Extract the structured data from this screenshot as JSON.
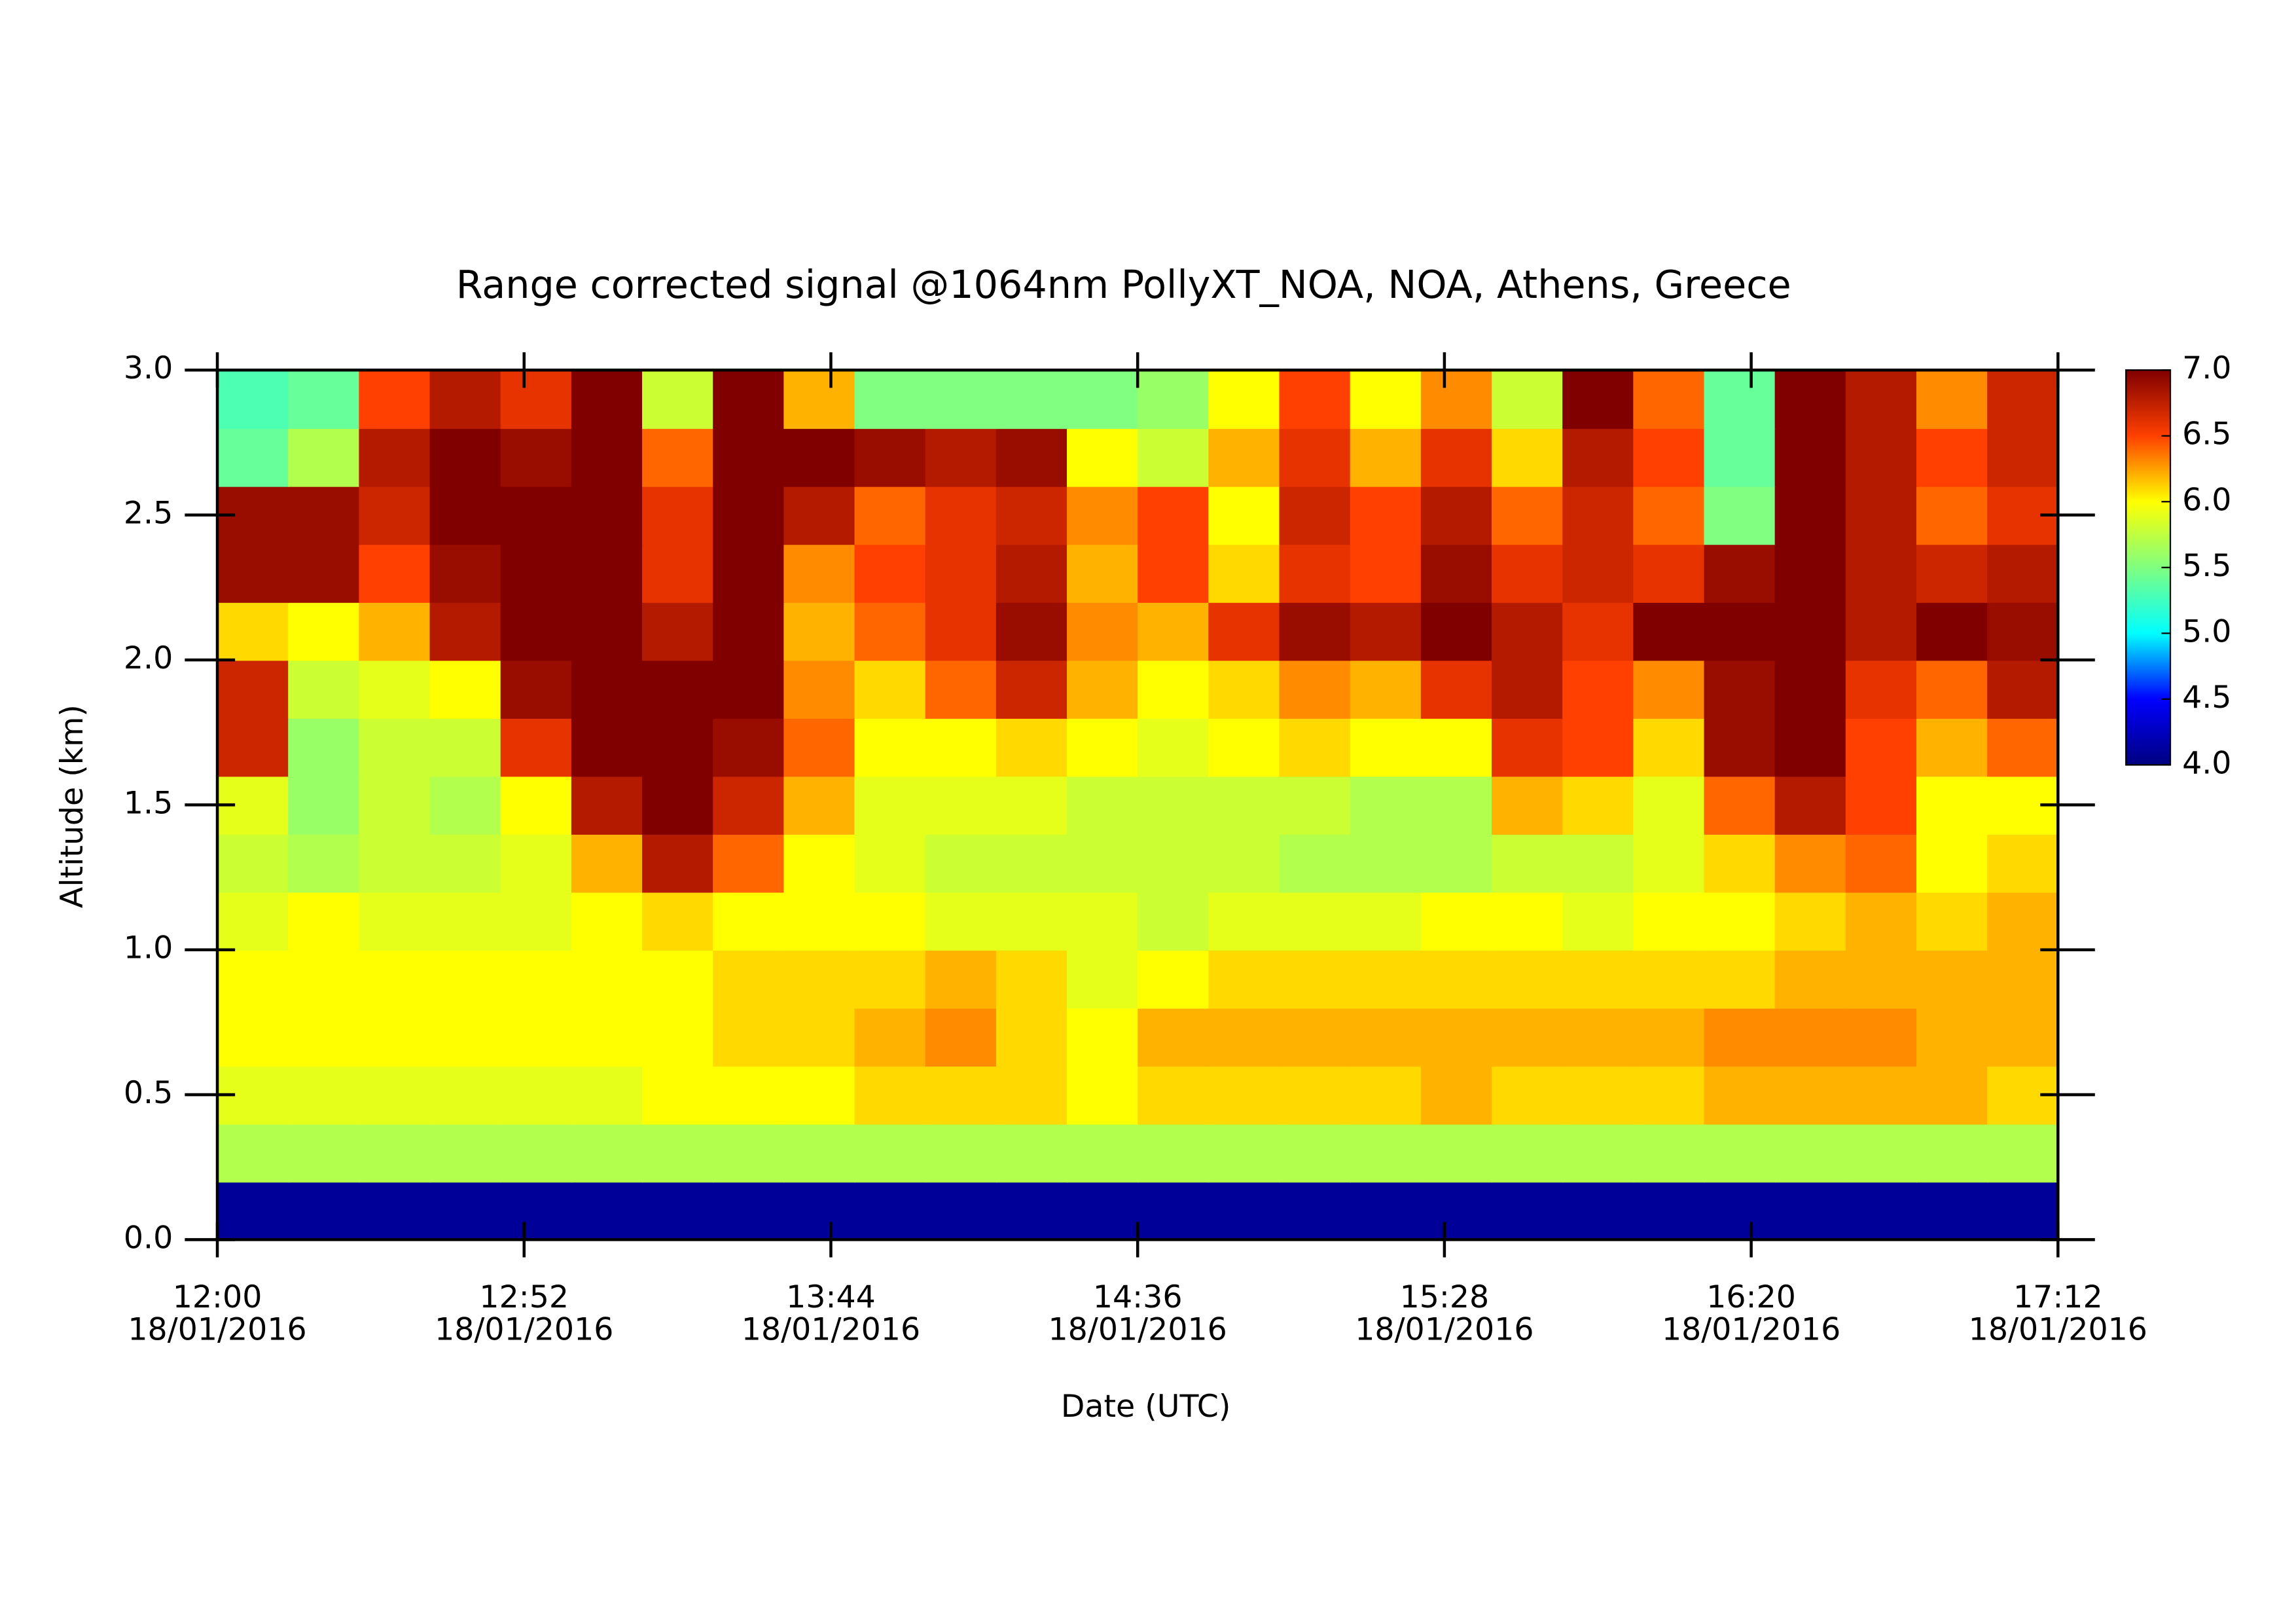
{
  "chart_data": {
    "type": "heatmap",
    "title": "Range corrected signal @1064nm  PollyXT_NOA, NOA, Athens, Greece",
    "xlabel": "Date (UTC)",
    "ylabel": "Altitude (km)",
    "x": [
      "12:00",
      "12:12",
      "12:24",
      "12:36",
      "12:48",
      "13:00",
      "13:12",
      "13:24",
      "13:36",
      "13:48",
      "14:00",
      "14:12",
      "14:24",
      "14:36",
      "14:48",
      "15:00",
      "15:12",
      "15:24",
      "15:36",
      "15:48",
      "16:00",
      "16:12",
      "16:24",
      "16:36",
      "16:48",
      "17:00"
    ],
    "y": [
      0,
      0.2,
      0.4,
      0.6,
      0.8,
      1.0,
      1.2,
      1.4,
      1.6,
      1.8,
      2.0,
      2.2,
      2.4,
      2.6,
      2.8
    ],
    "z": [
      [
        4.1,
        4.1,
        4.1,
        4.1,
        4.1,
        4.1,
        4.1,
        4.1,
        4.1,
        4.1,
        4.1,
        4.1,
        4.1,
        4.1,
        4.1,
        4.1,
        4.1,
        4.1,
        4.1,
        4.1,
        4.1,
        4.1,
        4.1,
        4.1,
        4.1,
        4.1
      ],
      [
        5.7,
        5.7,
        5.7,
        5.7,
        5.7,
        5.7,
        5.7,
        5.7,
        5.7,
        5.7,
        5.7,
        5.7,
        5.7,
        5.7,
        5.7,
        5.7,
        5.7,
        5.7,
        5.7,
        5.7,
        5.7,
        5.7,
        5.7,
        5.7,
        5.7,
        5.7
      ],
      [
        5.9,
        5.9,
        5.9,
        5.9,
        5.9,
        5.9,
        6.0,
        6.0,
        6.0,
        6.1,
        6.1,
        6.1,
        6.0,
        6.1,
        6.1,
        6.1,
        6.1,
        6.2,
        6.1,
        6.1,
        6.1,
        6.2,
        6.2,
        6.2,
        6.2,
        6.1
      ],
      [
        6.0,
        6.0,
        6.0,
        6.0,
        6.0,
        6.0,
        6.0,
        6.1,
        6.1,
        6.2,
        6.3,
        6.1,
        6.0,
        6.2,
        6.2,
        6.2,
        6.2,
        6.2,
        6.2,
        6.2,
        6.2,
        6.3,
        6.3,
        6.3,
        6.2,
        6.2
      ],
      [
        6.0,
        6.0,
        6.0,
        6.0,
        6.0,
        6.0,
        6.0,
        6.1,
        6.1,
        6.1,
        6.2,
        6.1,
        5.9,
        6.0,
        6.1,
        6.1,
        6.1,
        6.1,
        6.1,
        6.1,
        6.1,
        6.1,
        6.2,
        6.2,
        6.2,
        6.2
      ],
      [
        5.9,
        6.0,
        5.9,
        5.9,
        5.9,
        6.0,
        6.1,
        6.0,
        6.0,
        6.0,
        5.9,
        5.9,
        5.9,
        5.8,
        5.9,
        5.9,
        5.9,
        6.0,
        6.0,
        5.9,
        6.0,
        6.0,
        6.1,
        6.2,
        6.1,
        6.2
      ],
      [
        5.8,
        5.7,
        5.8,
        5.8,
        5.9,
        6.2,
        6.8,
        6.4,
        6.0,
        5.9,
        5.8,
        5.8,
        5.8,
        5.8,
        5.8,
        5.7,
        5.7,
        5.7,
        5.8,
        5.8,
        5.9,
        6.1,
        6.3,
        6.4,
        6.0,
        6.1
      ],
      [
        5.9,
        5.6,
        5.8,
        5.7,
        6.0,
        6.8,
        7.0,
        6.7,
        6.2,
        5.9,
        5.9,
        5.9,
        5.8,
        5.8,
        5.8,
        5.8,
        5.7,
        5.7,
        6.2,
        6.1,
        5.9,
        6.4,
        6.8,
        6.5,
        6.0,
        6.0
      ],
      [
        6.7,
        5.6,
        5.8,
        5.8,
        6.6,
        7.0,
        7.0,
        6.9,
        6.4,
        6.0,
        6.0,
        6.1,
        6.0,
        5.9,
        6.0,
        6.1,
        6.0,
        6.0,
        6.6,
        6.5,
        6.1,
        6.9,
        7.0,
        6.5,
        6.2,
        6.4
      ],
      [
        6.7,
        5.8,
        5.9,
        6.0,
        6.9,
        7.0,
        7.0,
        7.0,
        6.3,
        6.1,
        6.4,
        6.7,
        6.2,
        6.0,
        6.1,
        6.3,
        6.2,
        6.6,
        6.8,
        6.5,
        6.3,
        6.9,
        7.0,
        6.6,
        6.4,
        6.8
      ],
      [
        6.1,
        6.0,
        6.2,
        6.8,
        7.0,
        7.0,
        6.8,
        7.0,
        6.2,
        6.4,
        6.6,
        6.9,
        6.3,
        6.2,
        6.6,
        6.9,
        6.8,
        7.0,
        6.8,
        6.6,
        7.0,
        7.0,
        7.0,
        6.8,
        7.0,
        6.9
      ],
      [
        6.9,
        6.9,
        6.5,
        6.9,
        7.0,
        7.0,
        6.6,
        7.0,
        6.3,
        6.5,
        6.6,
        6.8,
        6.2,
        6.5,
        6.1,
        6.6,
        6.5,
        6.9,
        6.6,
        6.7,
        6.6,
        6.9,
        7.0,
        6.8,
        6.7,
        6.8
      ],
      [
        6.9,
        6.9,
        6.7,
        7.0,
        7.0,
        7.0,
        6.6,
        7.0,
        6.8,
        6.4,
        6.6,
        6.7,
        6.3,
        6.5,
        6.0,
        6.7,
        6.5,
        6.8,
        6.4,
        6.7,
        6.4,
        5.5,
        7.0,
        6.8,
        6.4,
        6.6
      ],
      [
        5.4,
        5.7,
        6.8,
        7.0,
        6.9,
        7.0,
        6.4,
        7.0,
        7.0,
        6.9,
        6.8,
        6.9,
        6.0,
        5.8,
        6.2,
        6.6,
        6.2,
        6.6,
        6.1,
        6.8,
        6.5,
        5.4,
        7.0,
        6.8,
        6.5,
        6.7
      ],
      [
        5.3,
        5.4,
        6.5,
        6.8,
        6.6,
        7.0,
        5.8,
        7.0,
        6.2,
        5.5,
        5.5,
        5.5,
        5.5,
        5.6,
        6.0,
        6.5,
        6.0,
        6.3,
        5.8,
        7.0,
        6.4,
        5.4,
        7.0,
        6.8,
        6.3,
        6.7
      ]
    ],
    "xlim": [
      "12:00",
      "17:12"
    ],
    "xticks": [
      "12:00",
      "12:52",
      "13:44",
      "14:36",
      "15:28",
      "16:20",
      "17:12"
    ],
    "xtick_dates": [
      "18/01/2016",
      "18/01/2016",
      "18/01/2016",
      "18/01/2016",
      "18/01/2016",
      "18/01/2016",
      "18/01/2016"
    ],
    "ylim": [
      0,
      3
    ],
    "yticks": [
      {
        "value": 0,
        "label": "0.0"
      },
      0.5,
      {
        "value": 1,
        "label": "1.0"
      },
      1.5,
      {
        "value": 2,
        "label": "2.0"
      },
      2.5,
      {
        "value": 3,
        "label": "3.0"
      }
    ],
    "colorbar": {
      "lim": [
        4,
        7
      ],
      "ticks": [
        {
          "value": 4,
          "label": "4.0"
        },
        4.5,
        {
          "value": 5,
          "label": "5.0"
        },
        5.5,
        {
          "value": 6,
          "label": "6.0"
        },
        6.5,
        {
          "value": 7,
          "label": "7.0"
        }
      ],
      "colormap": [
        "#00007f",
        "#0000ff",
        "#00ffff",
        "#80ff80",
        "#ffff00",
        "#ff4000",
        "#800000"
      ]
    }
  }
}
